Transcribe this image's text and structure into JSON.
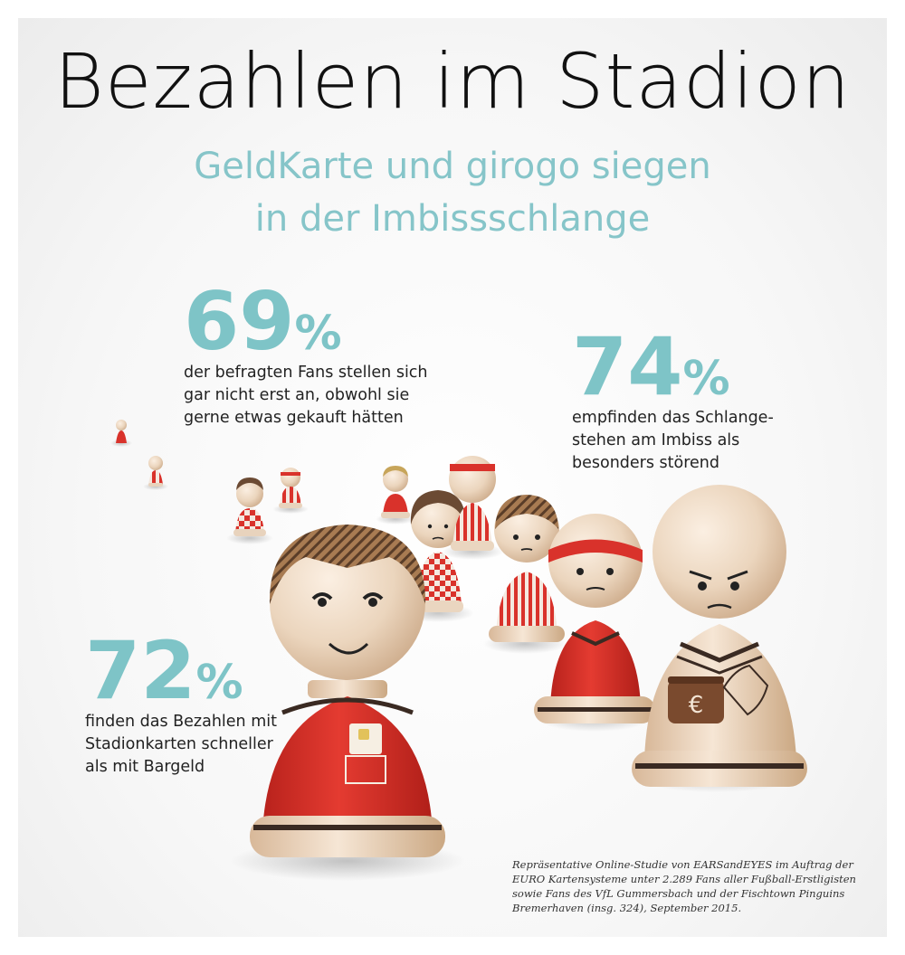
{
  "header": {
    "title": "Bezahlen im Stadion",
    "subtitle_line1": "GeldKarte und girogo siegen",
    "subtitle_line2": "in der Imbissschlange"
  },
  "stats": [
    {
      "value": "69",
      "unit": "%",
      "lines": [
        "der befragten Fans stellen sich",
        "gar nicht erst an, obwohl sie",
        "gerne etwas gekauft hätten"
      ]
    },
    {
      "value": "74",
      "unit": "%",
      "lines": [
        "empfinden das Schlange-",
        "stehen am Imbiss als",
        "besonders störend"
      ]
    },
    {
      "value": "72",
      "unit": "%",
      "lines": [
        "finden das Bezahlen mit",
        "Stadionkarten schneller",
        "als mit Bargeld"
      ]
    }
  ],
  "purse_symbol": "€",
  "footnote": {
    "line1": "Repräsentative Online-Studie von EARSandEYES im Auftrag der",
    "line2": "EURO Kartensysteme unter 2.289 Fans aller Fußball-Erstligisten",
    "line3": "sowie Fans des VfL Gummersbach und der Fischtown Pinguins",
    "line4": "Bremerhaven (insg. 324), September 2015."
  },
  "colors": {
    "accent": "#7ec4c7",
    "jersey_red": "#d9322b",
    "wood": "#edd9c3"
  }
}
